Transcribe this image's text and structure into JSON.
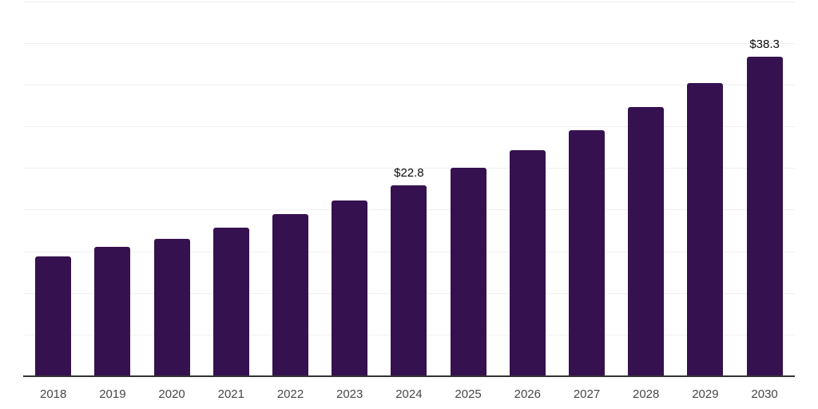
{
  "chart_data": {
    "type": "bar",
    "title": "",
    "xlabel": "",
    "ylabel": "",
    "categories": [
      "2018",
      "2019",
      "2020",
      "2021",
      "2022",
      "2023",
      "2024",
      "2025",
      "2026",
      "2027",
      "2028",
      "2029",
      "2030"
    ],
    "values": [
      14.3,
      15.4,
      16.4,
      17.7,
      19.4,
      21.0,
      22.8,
      24.9,
      27.0,
      29.4,
      32.2,
      35.1,
      38.3
    ],
    "data_labels": {
      "2024": "$22.8",
      "2030": "$38.3"
    },
    "ylim": [
      0,
      45
    ],
    "gridline_step": 5,
    "grid": "horizontal",
    "legend": "none",
    "colors": {
      "bar": "#36114f",
      "axis_line": "#333333",
      "gridline": "#f0f0f1",
      "tick_label": "#474747",
      "data_label": "#0a0a0a",
      "background": "#ffffff"
    }
  }
}
